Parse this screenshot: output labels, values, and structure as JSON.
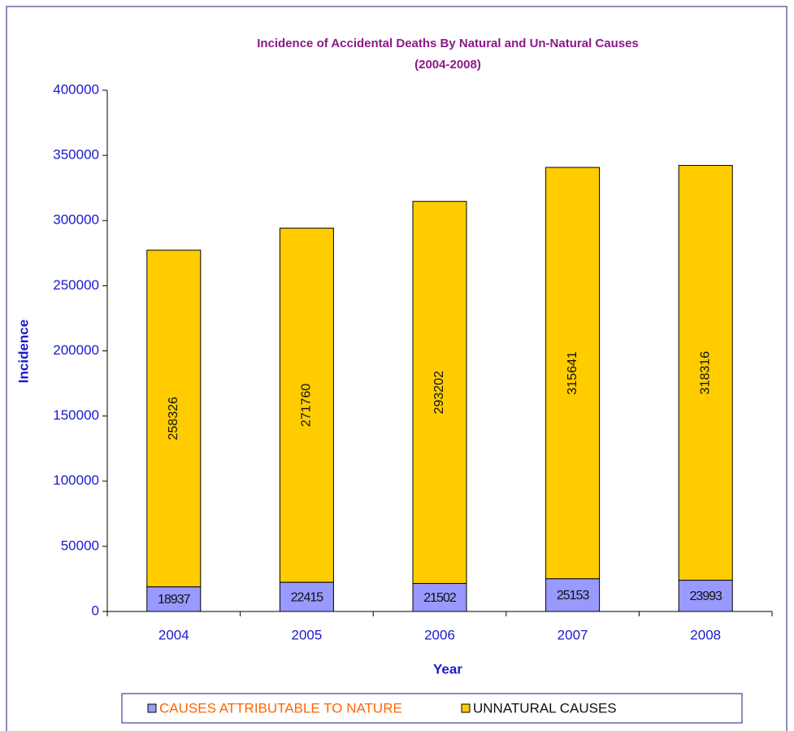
{
  "chart_data": {
    "type": "stacked_bar",
    "title": "Incidence of Accidental Deaths By Natural and Un-Natural Causes",
    "subtitle": "(2004-2008)",
    "x_label": "Year",
    "y_label": "Incidence",
    "categories": [
      "2004",
      "2005",
      "2006",
      "2007",
      "2008"
    ],
    "series": [
      {
        "name": "CAUSES ATTRIBUTABLE TO NATURE",
        "color": "#9999ff",
        "values": [
          18937,
          22415,
          21502,
          25153,
          23993
        ]
      },
      {
        "name": "UNNATURAL CAUSES",
        "color": "#ffcc00",
        "values": [
          258326,
          271760,
          293202,
          315641,
          318316
        ]
      }
    ],
    "ylim": [
      0,
      400000
    ],
    "yticks": [
      0,
      50000,
      100000,
      150000,
      200000,
      250000,
      300000,
      350000,
      400000
    ],
    "grid": false,
    "legend": "bottom"
  }
}
